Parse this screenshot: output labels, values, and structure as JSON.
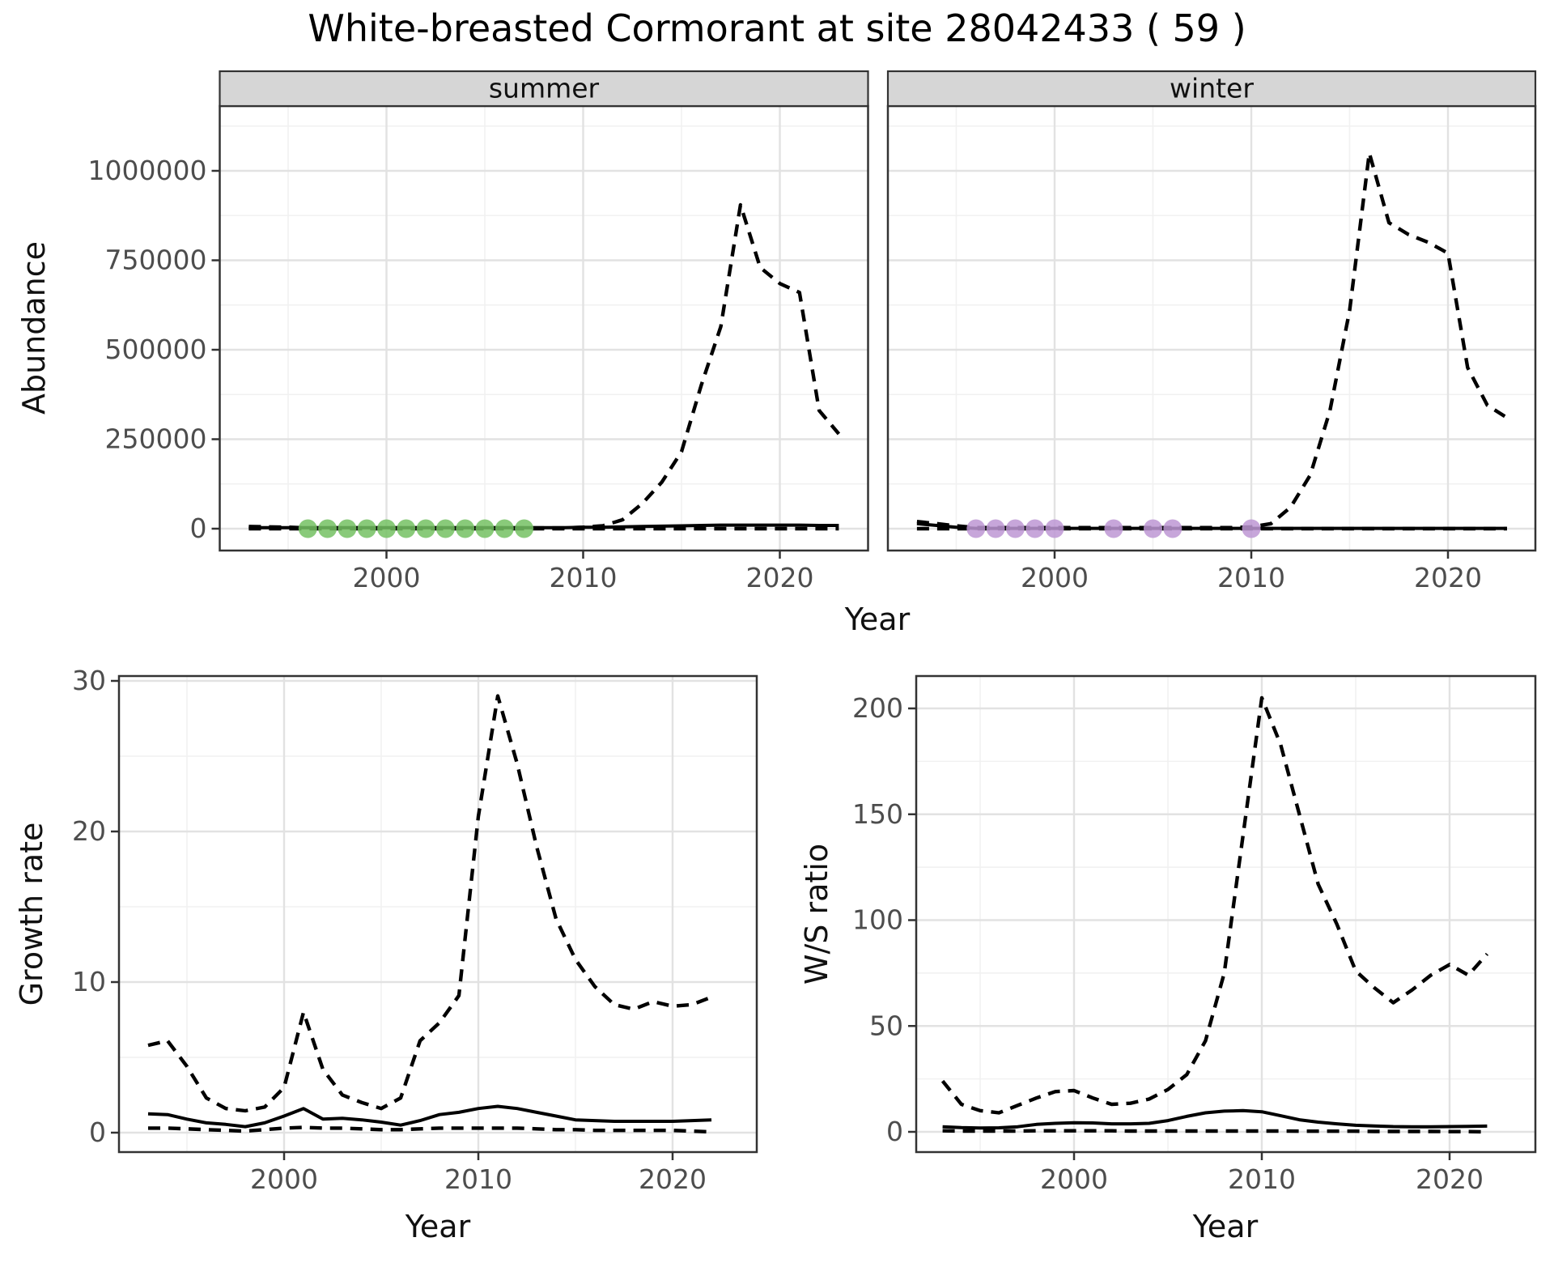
{
  "title": "White-breasted Cormorant at site 28042433 ( 59 )",
  "axis_titles": {
    "abundance": "Abundance",
    "growth_rate": "Growth rate",
    "ws_ratio": "W/S ratio",
    "year_top": "Year",
    "year_bottom_left": "Year",
    "year_bottom_right": "Year"
  },
  "colors": {
    "line": "#000000",
    "summer_dot": "#74c163",
    "winter_dot": "#bd97d3",
    "strip_bg": "#d6d6d6",
    "grid_major": "#e2e2e2",
    "grid_minor": "#f1f1f1",
    "panel_border": "#333333",
    "tick_text": "#4d4d4d"
  },
  "chart_data": [
    {
      "id": "abundance_summer",
      "type": "line",
      "title": "summer",
      "strip_label": "summer",
      "xlabel": "Year",
      "ylabel": "Abundance",
      "xlim": [
        1991.5,
        2024.5
      ],
      "ylim": [
        -56000,
        1181000
      ],
      "grid": "major+minor",
      "legend": "none",
      "x_ticks": {
        "values": [
          2000,
          2010,
          2020
        ],
        "labels": [
          "2000",
          "2010",
          "2020"
        ]
      },
      "x_minor": [
        1995,
        2005,
        2015
      ],
      "y_ticks": {
        "values": [
          0,
          250000,
          500000,
          750000,
          1000000
        ],
        "labels": [
          "0",
          "250000",
          "500000",
          "750000",
          "1000000"
        ]
      },
      "y_minor": [
        125000,
        375000,
        625000,
        875000,
        1125000
      ],
      "series": [
        {
          "name": "upper_ci",
          "style": "dashed",
          "years": [
            1993,
            1994,
            1995,
            1996,
            1997,
            1998,
            1999,
            2000,
            2001,
            2002,
            2003,
            2004,
            2005,
            2006,
            2007,
            2008,
            2009,
            2010,
            2011,
            2012,
            2013,
            2014,
            2015,
            2016,
            2017,
            2018,
            2019,
            2020,
            2021,
            2022,
            2023
          ],
          "values": [
            6000,
            5000,
            4000,
            2000,
            2000,
            2000,
            2000,
            2000,
            2000,
            2000,
            2000,
            2000,
            2000,
            2000,
            2000,
            2000,
            2000,
            4000,
            8000,
            25000,
            70000,
            130000,
            215000,
            400000,
            565000,
            905000,
            730000,
            685000,
            660000,
            330000,
            265000
          ]
        },
        {
          "name": "lower_ci",
          "style": "dashed",
          "years": [
            1993,
            1994,
            1995,
            1996,
            1997,
            1998,
            1999,
            2000,
            2001,
            2002,
            2003,
            2004,
            2005,
            2006,
            2007,
            2008,
            2009,
            2010,
            2011,
            2012,
            2013,
            2014,
            2015,
            2016,
            2017,
            2018,
            2019,
            2020,
            2021,
            2022,
            2023
          ],
          "values": [
            0,
            0,
            0,
            0,
            0,
            0,
            0,
            0,
            0,
            0,
            0,
            0,
            0,
            0,
            0,
            0,
            0,
            0,
            0,
            0,
            0,
            0,
            0,
            0,
            0,
            0,
            0,
            0,
            0,
            0,
            0
          ]
        },
        {
          "name": "estimate",
          "style": "solid",
          "years": [
            1993,
            1994,
            1995,
            1996,
            1997,
            1998,
            1999,
            2000,
            2001,
            2002,
            2003,
            2004,
            2005,
            2006,
            2007,
            2008,
            2009,
            2010,
            2011,
            2012,
            2013,
            2014,
            2015,
            2016,
            2017,
            2018,
            2019,
            2020,
            2021,
            2022,
            2023
          ],
          "values": [
            3000,
            3000,
            3000,
            3000,
            3000,
            3000,
            3000,
            3000,
            3000,
            3000,
            3000,
            3000,
            3000,
            3000,
            3000,
            3000,
            3000,
            4000,
            4000,
            5000,
            6000,
            7000,
            8000,
            9000,
            10000,
            10000,
            10000,
            10000,
            10000,
            9000,
            9000
          ]
        }
      ],
      "points": {
        "name": "observed_counts",
        "color_key": "summer_dot",
        "value": 0,
        "years": [
          1996,
          1997,
          1998,
          1999,
          2000,
          2001,
          2002,
          2003,
          2004,
          2005,
          2006,
          2007
        ]
      }
    },
    {
      "id": "abundance_winter",
      "type": "line",
      "title": "winter",
      "strip_label": "winter",
      "xlabel": "Year",
      "ylabel": "Abundance",
      "xlim": [
        1991.5,
        2024.5
      ],
      "ylim": [
        -56000,
        1181000
      ],
      "grid": "major+minor",
      "legend": "none",
      "x_ticks": {
        "values": [
          2000,
          2010,
          2020
        ],
        "labels": [
          "2000",
          "2010",
          "2020"
        ]
      },
      "x_minor": [
        1995,
        2005,
        2015
      ],
      "y_ticks": {
        "values": [
          0,
          250000,
          500000,
          750000,
          1000000
        ],
        "labels": null
      },
      "y_minor": [
        125000,
        375000,
        625000,
        875000,
        1125000
      ],
      "series": [
        {
          "name": "upper_ci",
          "style": "dashed",
          "years": [
            1993,
            1994,
            1995,
            1996,
            1997,
            1998,
            1999,
            2000,
            2001,
            2002,
            2003,
            2004,
            2005,
            2006,
            2007,
            2008,
            2009,
            2010,
            2011,
            2012,
            2013,
            2014,
            2015,
            2016,
            2017,
            2018,
            2019,
            2020,
            2021,
            2022,
            2023
          ],
          "values": [
            20000,
            14000,
            8000,
            3000,
            3000,
            3000,
            3000,
            3000,
            3000,
            3000,
            3000,
            3000,
            3000,
            3000,
            3000,
            3000,
            3000,
            5000,
            14000,
            60000,
            150000,
            330000,
            610000,
            1050000,
            855000,
            822000,
            800000,
            770000,
            450000,
            345000,
            310000
          ]
        },
        {
          "name": "lower_ci",
          "style": "dashed",
          "years": [
            1993,
            1994,
            1995,
            1996,
            1997,
            1998,
            1999,
            2000,
            2001,
            2002,
            2003,
            2004,
            2005,
            2006,
            2007,
            2008,
            2009,
            2010,
            2011,
            2012,
            2013,
            2014,
            2015,
            2016,
            2017,
            2018,
            2019,
            2020,
            2021,
            2022,
            2023
          ],
          "values": [
            0,
            0,
            0,
            0,
            0,
            0,
            0,
            0,
            0,
            0,
            0,
            0,
            0,
            0,
            0,
            0,
            0,
            0,
            0,
            0,
            0,
            0,
            0,
            0,
            0,
            0,
            0,
            0,
            0,
            0,
            0
          ]
        },
        {
          "name": "estimate",
          "style": "solid",
          "years": [
            1993,
            1994,
            1995,
            1996,
            1997,
            1998,
            1999,
            2000,
            2001,
            2002,
            2003,
            2004,
            2005,
            2006,
            2007,
            2008,
            2009,
            2010,
            2011,
            2012,
            2013,
            2014,
            2015,
            2016,
            2017,
            2018,
            2019,
            2020,
            2021,
            2022,
            2023
          ],
          "values": [
            14000,
            9000,
            4000,
            1000,
            1000,
            1000,
            1000,
            1000,
            1000,
            1000,
            1000,
            1000,
            1000,
            1000,
            1000,
            1000,
            1000,
            1000,
            1000,
            1000,
            1000,
            1000,
            1000,
            1000,
            1000,
            1000,
            1000,
            1000,
            1000,
            1000,
            1000
          ]
        }
      ],
      "points": {
        "name": "observed_counts",
        "color_key": "winter_dot",
        "value": 0,
        "years": [
          1996,
          1997,
          1998,
          1999,
          2000,
          2003,
          2005,
          2006,
          2010
        ]
      }
    },
    {
      "id": "growth_rate",
      "type": "line",
      "title": "Growth rate",
      "xlabel": "Year",
      "ylabel": "Growth rate",
      "xlim": [
        1991.5,
        2024.3
      ],
      "ylim": [
        -1.3,
        30.3
      ],
      "grid": "major+minor",
      "legend": "none",
      "x_ticks": {
        "values": [
          2000,
          2010,
          2020
        ],
        "labels": [
          "2000",
          "2010",
          "2020"
        ]
      },
      "x_minor": [
        1995,
        2005,
        2015
      ],
      "y_ticks": {
        "values": [
          0,
          10,
          20,
          30
        ],
        "labels": [
          "0",
          "10",
          "20",
          "30"
        ]
      },
      "y_minor": [
        5,
        15,
        25
      ],
      "series": [
        {
          "name": "upper_ci",
          "style": "dashed",
          "years": [
            1993,
            1994,
            1995,
            1996,
            1997,
            1998,
            1999,
            2000,
            2001,
            2002,
            2003,
            2004,
            2005,
            2006,
            2007,
            2008,
            2009,
            2010,
            2011,
            2012,
            2013,
            2014,
            2015,
            2016,
            2017,
            2018,
            2019,
            2020,
            2021,
            2022
          ],
          "values": [
            5.8,
            6.1,
            4.4,
            2.3,
            1.6,
            1.45,
            1.7,
            3.0,
            8.0,
            4.2,
            2.5,
            2.0,
            1.6,
            2.3,
            6.1,
            7.3,
            9.1,
            21,
            29,
            24.5,
            19,
            14.2,
            11.5,
            9.7,
            8.5,
            8.2,
            8.7,
            8.4,
            8.5,
            9.0
          ]
        },
        {
          "name": "lower_ci",
          "style": "dashed",
          "years": [
            1993,
            1994,
            1995,
            1996,
            1997,
            1998,
            1999,
            2000,
            2001,
            2002,
            2003,
            2004,
            2005,
            2006,
            2007,
            2008,
            2009,
            2010,
            2011,
            2012,
            2013,
            2014,
            2015,
            2016,
            2017,
            2018,
            2019,
            2020,
            2021,
            2022
          ],
          "values": [
            0.3,
            0.3,
            0.25,
            0.2,
            0.15,
            0.1,
            0.2,
            0.3,
            0.35,
            0.3,
            0.3,
            0.25,
            0.2,
            0.2,
            0.25,
            0.3,
            0.3,
            0.3,
            0.3,
            0.3,
            0.25,
            0.2,
            0.2,
            0.15,
            0.15,
            0.15,
            0.15,
            0.15,
            0.1,
            0.05
          ]
        },
        {
          "name": "estimate",
          "style": "solid",
          "years": [
            1993,
            1994,
            1995,
            1996,
            1997,
            1998,
            1999,
            2000,
            2001,
            2002,
            2003,
            2004,
            2005,
            2006,
            2007,
            2008,
            2009,
            2010,
            2011,
            2012,
            2013,
            2014,
            2015,
            2016,
            2017,
            2018,
            2019,
            2020,
            2021,
            2022
          ],
          "values": [
            1.25,
            1.2,
            0.9,
            0.65,
            0.55,
            0.4,
            0.65,
            1.1,
            1.6,
            0.9,
            0.95,
            0.85,
            0.7,
            0.5,
            0.8,
            1.2,
            1.35,
            1.6,
            1.75,
            1.6,
            1.35,
            1.1,
            0.85,
            0.8,
            0.75,
            0.75,
            0.75,
            0.75,
            0.8,
            0.85
          ]
        }
      ]
    },
    {
      "id": "ws_ratio",
      "type": "line",
      "title": "W/S ratio",
      "xlabel": "Year",
      "ylabel": "W/S ratio",
      "xlim": [
        1991.6,
        2024.6
      ],
      "ylim": [
        -9.6,
        215.3
      ],
      "grid": "major+minor",
      "legend": "none",
      "x_ticks": {
        "values": [
          2000,
          2010,
          2020
        ],
        "labels": [
          "2000",
          "2010",
          "2020"
        ]
      },
      "x_minor": [
        1995,
        2005,
        2015
      ],
      "y_ticks": {
        "values": [
          0,
          50,
          100,
          150,
          200
        ],
        "labels": [
          "0",
          "50",
          "100",
          "150",
          "200"
        ]
      },
      "y_minor": [
        25,
        75,
        125,
        175
      ],
      "series": [
        {
          "name": "upper_ci",
          "style": "dashed",
          "years": [
            1993,
            1994,
            1995,
            1996,
            1997,
            1998,
            1999,
            2000,
            2001,
            2002,
            2003,
            2004,
            2005,
            2006,
            2007,
            2008,
            2009,
            2010,
            2011,
            2012,
            2013,
            2014,
            2015,
            2016,
            2017,
            2018,
            2019,
            2020,
            2021,
            2022
          ],
          "values": [
            24,
            13,
            10,
            9,
            12.5,
            16,
            19,
            19.5,
            16,
            13,
            13.5,
            15.5,
            20,
            27,
            43,
            75,
            140,
            205,
            183,
            150,
            117,
            98,
            76,
            68,
            61,
            67,
            74,
            79,
            74,
            84
          ]
        },
        {
          "name": "lower_ci",
          "style": "dashed",
          "years": [
            1993,
            1994,
            1995,
            1996,
            1997,
            1998,
            1999,
            2000,
            2001,
            2002,
            2003,
            2004,
            2005,
            2006,
            2007,
            2008,
            2009,
            2010,
            2011,
            2012,
            2013,
            2014,
            2015,
            2016,
            2017,
            2018,
            2019,
            2020,
            2021,
            2022
          ],
          "values": [
            0.5,
            0.4,
            0.4,
            0.4,
            0.4,
            0.5,
            0.5,
            0.5,
            0.5,
            0.5,
            0.4,
            0.4,
            0.4,
            0.4,
            0.4,
            0.4,
            0.4,
            0.4,
            0.4,
            0.3,
            0.3,
            0.3,
            0.3,
            0.2,
            0.2,
            0.2,
            0.2,
            0.1,
            0.1,
            0.0
          ]
        },
        {
          "name": "estimate",
          "style": "solid",
          "years": [
            1993,
            1994,
            1995,
            1996,
            1997,
            1998,
            1999,
            2000,
            2001,
            2002,
            2003,
            2004,
            2005,
            2006,
            2007,
            2008,
            2009,
            2010,
            2011,
            2012,
            2013,
            2014,
            2015,
            2016,
            2017,
            2018,
            2019,
            2020,
            2021,
            2022
          ],
          "values": [
            2.4,
            2.0,
            1.8,
            1.9,
            2.4,
            3.5,
            4.0,
            4.3,
            4.2,
            3.8,
            3.8,
            4.0,
            5.3,
            7.3,
            9.0,
            9.8,
            10.0,
            9.5,
            7.6,
            5.7,
            4.6,
            3.8,
            3.1,
            2.8,
            2.5,
            2.4,
            2.4,
            2.5,
            2.6,
            2.7
          ]
        }
      ]
    }
  ]
}
